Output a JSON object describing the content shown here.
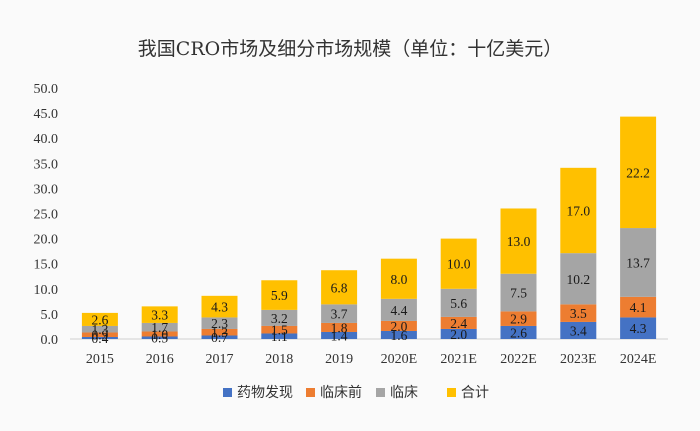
{
  "chart_data": {
    "type": "bar",
    "stacked": true,
    "title": "我国CRO市场及细分市场规模（单位：十亿美元）",
    "categories": [
      "2015",
      "2016",
      "2017",
      "2018",
      "2019",
      "2020E",
      "2021E",
      "2022E",
      "2023E",
      "2024E"
    ],
    "series": [
      {
        "name": "药物发现",
        "color": "#4472C4",
        "values": [
          0.4,
          0.5,
          0.7,
          1.1,
          1.4,
          1.6,
          2.0,
          2.6,
          3.4,
          4.3
        ]
      },
      {
        "name": "临床前",
        "color": "#ED7D31",
        "values": [
          0.9,
          1.0,
          1.3,
          1.5,
          1.8,
          2.0,
          2.4,
          2.9,
          3.5,
          4.1
        ]
      },
      {
        "name": "临床",
        "color": "#A5A5A5",
        "values": [
          1.3,
          1.7,
          2.3,
          3.2,
          3.7,
          4.4,
          5.6,
          7.5,
          10.2,
          13.7
        ]
      },
      {
        "name": "合计",
        "color": "#FFC000",
        "values": [
          2.6,
          3.3,
          4.3,
          5.9,
          6.8,
          8.0,
          10.0,
          13.0,
          17.0,
          22.2
        ]
      }
    ],
    "ylim": [
      0,
      50
    ],
    "yticks": [
      "0.0",
      "5.0",
      "10.0",
      "15.0",
      "20.0",
      "25.0",
      "30.0",
      "35.0",
      "40.0",
      "45.0",
      "50.0"
    ],
    "grid": false,
    "legend_position": "bottom"
  }
}
